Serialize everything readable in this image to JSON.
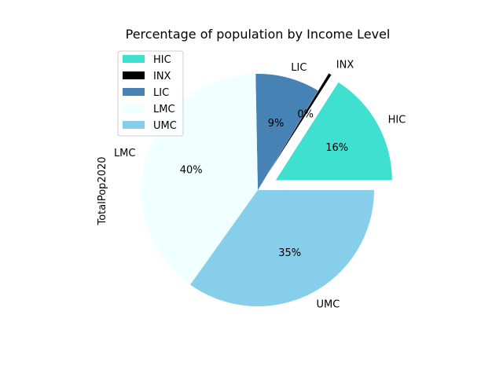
{
  "chart_data": {
    "type": "pie",
    "title": "Percentage of population by Income Level",
    "ylabel": "TotalPop2020",
    "legend_position": "top-left",
    "categories": [
      "HIC",
      "INX",
      "LIC",
      "LMC",
      "UMC"
    ],
    "values": [
      16.0,
      0.4,
      9.0,
      40.0,
      35.0
    ],
    "percent_labels": [
      "16%",
      "0%",
      "9%",
      "40%",
      "35%"
    ],
    "colors": [
      "#40e0d0",
      "#000000",
      "#4682b4",
      "#f0ffff",
      "#87ceeb"
    ],
    "exploded": [
      "HIC",
      "INX"
    ]
  }
}
